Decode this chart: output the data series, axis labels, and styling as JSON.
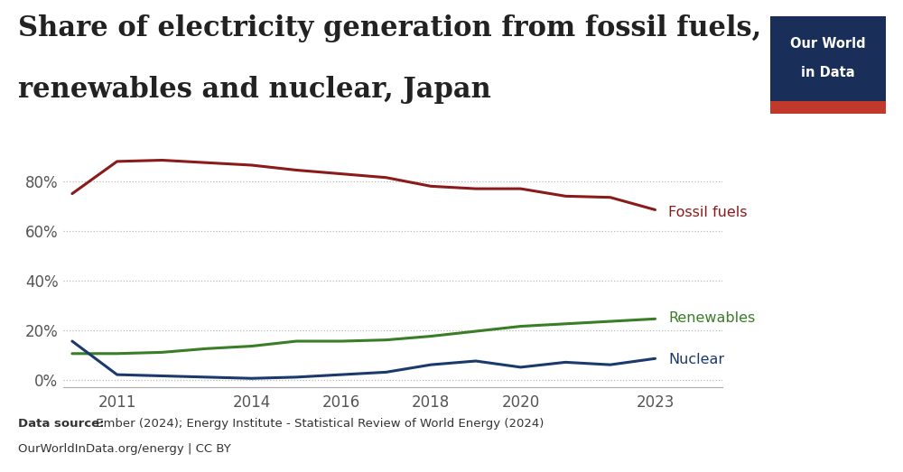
{
  "title_line1": "Share of electricity generation from fossil fuels,",
  "title_line2": "renewables and nuclear, Japan",
  "title_fontsize": 22,
  "background_color": "#ffffff",
  "years": [
    2010,
    2011,
    2012,
    2013,
    2014,
    2015,
    2016,
    2017,
    2018,
    2019,
    2020,
    2021,
    2022,
    2023
  ],
  "fossil_fuels": [
    75.0,
    88.0,
    88.5,
    87.5,
    86.5,
    84.5,
    83.0,
    81.5,
    78.0,
    77.0,
    77.0,
    74.0,
    73.5,
    68.5
  ],
  "renewables": [
    10.5,
    10.5,
    11.0,
    12.5,
    13.5,
    15.5,
    15.5,
    16.0,
    17.5,
    19.5,
    21.5,
    22.5,
    23.5,
    24.5
  ],
  "nuclear": [
    15.5,
    2.0,
    1.5,
    1.0,
    0.5,
    1.0,
    2.0,
    3.0,
    6.0,
    7.5,
    5.0,
    7.0,
    6.0,
    8.5
  ],
  "fossil_color": "#8b1a1a",
  "renewables_color": "#3a7d27",
  "nuclear_color": "#1a3a6b",
  "ylabel_ticks": [
    0,
    20,
    40,
    60,
    80
  ],
  "ytick_labels": [
    "0%",
    "20%",
    "40%",
    "60%",
    "80%"
  ],
  "grid_color": "#bbbbbb",
  "xtick_positions": [
    2011,
    2014,
    2016,
    2018,
    2020,
    2023
  ],
  "source_bold": "Data source:",
  "source_text": " Ember (2024); Energy Institute - Statistical Review of World Energy (2024)",
  "source_line2": "OurWorldInData.org/energy | CC BY",
  "owid_box_color": "#1a2e5a",
  "owid_stripe_color": "#c0392b",
  "label_fossil": "Fossil fuels",
  "label_renewables": "Renewables",
  "label_nuclear": "Nuclear",
  "xlim_min": 2009.8,
  "xlim_max": 2024.5,
  "ylim_min": -3,
  "ylim_max": 96
}
